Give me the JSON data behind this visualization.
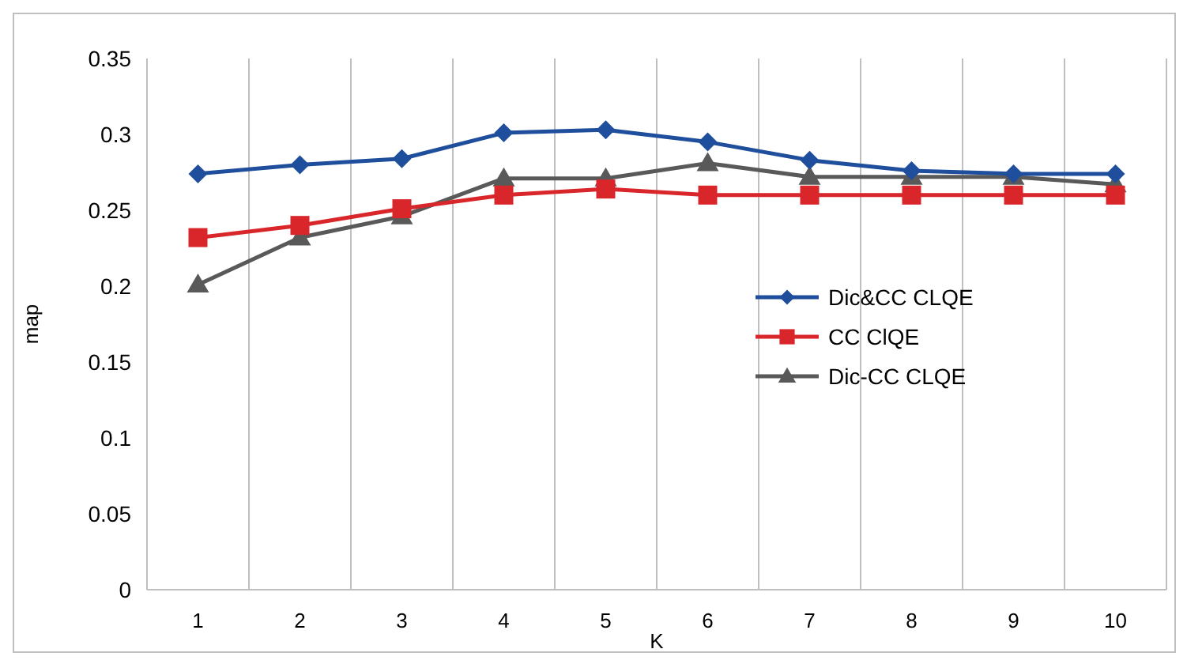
{
  "chart_data": {
    "type": "line",
    "xlabel": "K",
    "ylabel": "map",
    "categories": [
      "1",
      "2",
      "3",
      "4",
      "5",
      "6",
      "7",
      "8",
      "9",
      "10"
    ],
    "ylim": [
      0,
      0.35
    ],
    "yticks": [
      0,
      0.05,
      0.1,
      0.15,
      0.2,
      0.25,
      0.3,
      0.35
    ],
    "grid": "x",
    "legend": "right",
    "line_style": "solid",
    "series": [
      {
        "name": "Dic&CC CLQE",
        "color": "#1f4e9c",
        "marker": "diamond",
        "values": [
          0.274,
          0.28,
          0.284,
          0.301,
          0.303,
          0.295,
          0.283,
          0.276,
          0.274,
          0.274
        ]
      },
      {
        "name": "CC ClQE",
        "color": "#d9262a",
        "marker": "square",
        "values": [
          0.232,
          0.24,
          0.251,
          0.26,
          0.264,
          0.26,
          0.26,
          0.26,
          0.26,
          0.26
        ]
      },
      {
        "name": "Dic-CC CLQE",
        "color": "#595959",
        "marker": "triangle",
        "values": [
          0.201,
          0.232,
          0.246,
          0.271,
          0.271,
          0.281,
          0.272,
          0.272,
          0.272,
          0.267
        ]
      }
    ]
  }
}
